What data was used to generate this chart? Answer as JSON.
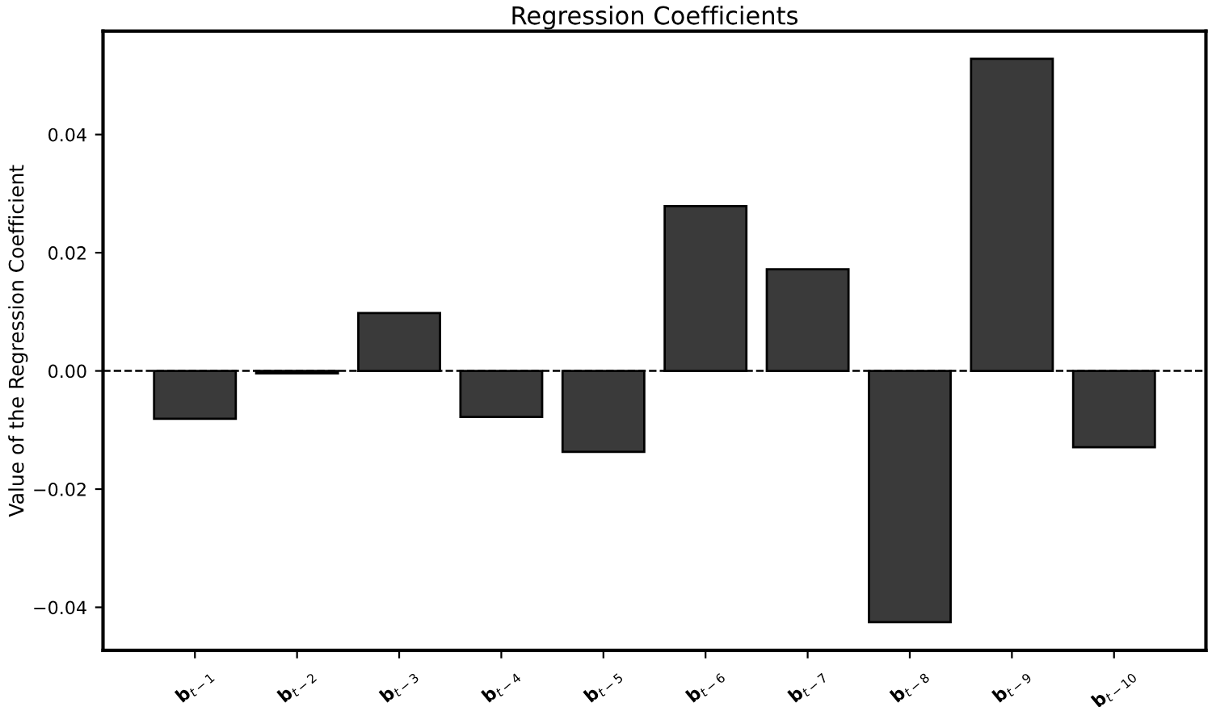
{
  "chart_data": {
    "type": "bar",
    "title": "Regression Coefficients",
    "ylabel": "Value of the Regression Coefficient",
    "categories": [
      "b$_{t−1}$",
      "b$_{t−2}$",
      "b$_{t−3}$",
      "b$_{t−4}$",
      "b$_{t−5}$",
      "b$_{t−6}$",
      "b$_{t−7}$",
      "b$_{t−8}$",
      "b$_{t−9}$",
      "b$_{t−10}$"
    ],
    "values": [
      -0.0081,
      -0.0004,
      0.0098,
      -0.0078,
      -0.0137,
      0.0279,
      0.0172,
      -0.0425,
      0.0528,
      -0.0129
    ],
    "color": "#3a3a3a",
    "ylim": [
      -0.0473,
      0.0575
    ],
    "yticks": [
      {
        "value": -0.04,
        "label": "−0.04"
      },
      {
        "value": -0.02,
        "label": "−0.02"
      },
      {
        "value": 0,
        "label": "0.00"
      },
      {
        "value": 0.02,
        "label": "0.02"
      },
      {
        "value": 0.04,
        "label": "0.04"
      }
    ],
    "ref_lines": [
      {
        "axis": "y",
        "value": 0,
        "color": "#000000",
        "line_style": "dashed"
      }
    ],
    "grid": false,
    "legend": false
  }
}
